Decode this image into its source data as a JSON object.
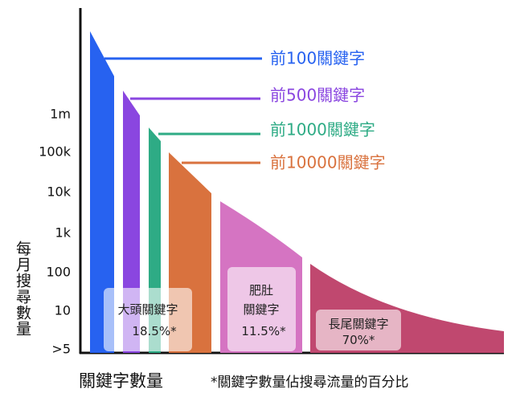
{
  "chart_data": {
    "type": "area",
    "title": "",
    "xlabel": "關鍵字數量",
    "ylabel": "每月搜尋數量",
    "y_ticks": [
      "1m",
      "100k",
      "10k",
      "1k",
      "100",
      "10",
      ">5"
    ],
    "footnote": "*關鍵字數量佔搜尋流量的百分比",
    "tiers": [
      {
        "label": "前100關鍵字",
        "color": "#2762f0"
      },
      {
        "label": "前500關鍵字",
        "color": "#8a46e0"
      },
      {
        "label": "前1000關鍵字",
        "color": "#2eab85"
      },
      {
        "label": "前10000關鍵字",
        "color": "#d9723e"
      }
    ],
    "segments": [
      {
        "name": "大頭關鍵字",
        "line2": "",
        "share": "18.5%*",
        "share_percent": 18.5
      },
      {
        "name": "肥肚",
        "line2": "關鍵字",
        "share": "11.5%*",
        "share_percent": 11.5,
        "color": "#d574c2"
      },
      {
        "name": "長尾關鍵字",
        "line2": "",
        "share": "70%*",
        "share_percent": 70,
        "color": "#c0486f"
      }
    ]
  }
}
